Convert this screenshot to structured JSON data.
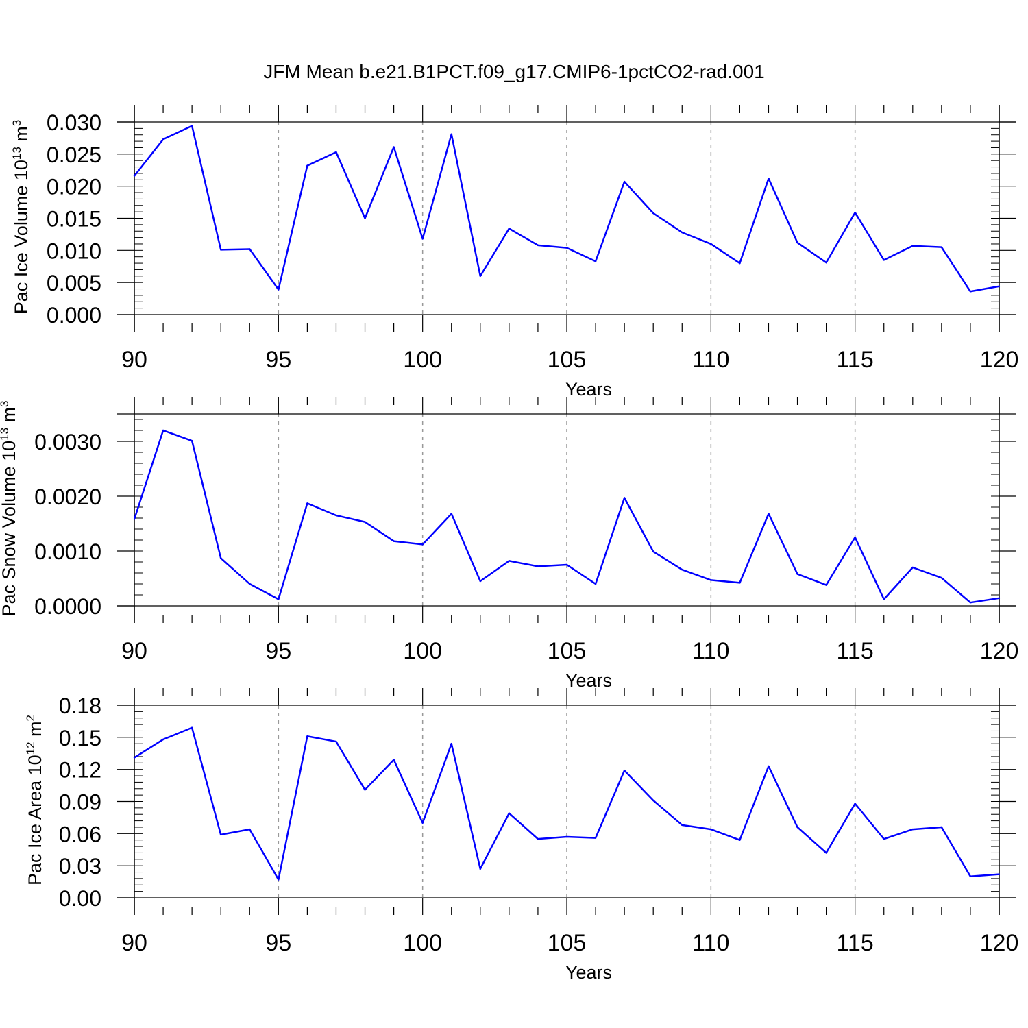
{
  "figure": {
    "title": "JFM Mean b.e21.B1PCT.f09_g17.CMIP6-1pctCO2-rad.001"
  },
  "chart_data": [
    {
      "type": "line",
      "xlabel": "Years",
      "ylabel_main": "Pac Ice Volume 10",
      "ylabel_sup": "13",
      "ylabel_unit": " m",
      "ylabel_unit_sup": "3",
      "xlim": [
        90,
        120
      ],
      "ylim": [
        0,
        0.03
      ],
      "xticks": [
        90,
        95,
        100,
        105,
        110,
        115,
        120
      ],
      "yticks": [
        0.0,
        0.005,
        0.01,
        0.015,
        0.02,
        0.025,
        0.03
      ],
      "ytick_labels": [
        "0.000",
        "0.005",
        "0.010",
        "0.015",
        "0.020",
        "0.025",
        "0.030"
      ],
      "line_color": "#0000ff",
      "grid": "dashed vertical at major x ticks",
      "x": [
        90,
        91,
        92,
        93,
        94,
        95,
        96,
        97,
        98,
        99,
        100,
        101,
        102,
        103,
        104,
        105,
        106,
        107,
        108,
        109,
        110,
        111,
        112,
        113,
        114,
        115,
        116,
        117,
        118,
        119,
        120
      ],
      "y": [
        0.0216,
        0.0273,
        0.0294,
        0.0101,
        0.0102,
        0.0039,
        0.0232,
        0.0253,
        0.015,
        0.0261,
        0.0118,
        0.0281,
        0.006,
        0.0134,
        0.0108,
        0.0104,
        0.0083,
        0.0207,
        0.0158,
        0.0128,
        0.011,
        0.008,
        0.0212,
        0.0112,
        0.0081,
        0.0159,
        0.0085,
        0.0107,
        0.0105,
        0.0036,
        0.0044
      ]
    },
    {
      "type": "line",
      "xlabel": "Years",
      "ylabel_main": "Pac Snow Volume 10",
      "ylabel_sup": "13",
      "ylabel_unit": " m",
      "ylabel_unit_sup": "3",
      "xlim": [
        90,
        120
      ],
      "ylim": [
        0,
        0.0035
      ],
      "xticks": [
        90,
        95,
        100,
        105,
        110,
        115,
        120
      ],
      "yticks": [
        0.0,
        0.001,
        0.002,
        0.003
      ],
      "ytick_labels": [
        "0.0000",
        "0.0010",
        "0.0020",
        "0.0030"
      ],
      "line_color": "#0000ff",
      "grid": "dashed vertical at major x ticks",
      "x": [
        90,
        91,
        92,
        93,
        94,
        95,
        96,
        97,
        98,
        99,
        100,
        101,
        102,
        103,
        104,
        105,
        106,
        107,
        108,
        109,
        110,
        111,
        112,
        113,
        114,
        115,
        116,
        117,
        118,
        119,
        120
      ],
      "y": [
        0.00158,
        0.0032,
        0.00301,
        0.00087,
        0.0004,
        0.00012,
        0.00187,
        0.00165,
        0.00153,
        0.00118,
        0.00112,
        0.00168,
        0.00045,
        0.00082,
        0.00072,
        0.00075,
        0.0004,
        0.00197,
        0.00099,
        0.00066,
        0.00047,
        0.00042,
        0.00168,
        0.00058,
        0.00038,
        0.00125,
        0.00012,
        0.0007,
        0.00051,
        6e-05,
        0.00014
      ]
    },
    {
      "type": "line",
      "xlabel": "Years",
      "ylabel_main": "Pac Ice Area 10",
      "ylabel_sup": "12",
      "ylabel_unit": " m",
      "ylabel_unit_sup": "2",
      "xlim": [
        90,
        120
      ],
      "ylim": [
        0,
        0.18
      ],
      "xticks": [
        90,
        95,
        100,
        105,
        110,
        115,
        120
      ],
      "yticks": [
        0.0,
        0.03,
        0.06,
        0.09,
        0.12,
        0.15,
        0.18
      ],
      "ytick_labels": [
        "0.00",
        "0.03",
        "0.06",
        "0.09",
        "0.12",
        "0.15",
        "0.18"
      ],
      "line_color": "#0000ff",
      "grid": "dashed vertical at major x ticks",
      "x": [
        90,
        91,
        92,
        93,
        94,
        95,
        96,
        97,
        98,
        99,
        100,
        101,
        102,
        103,
        104,
        105,
        106,
        107,
        108,
        109,
        110,
        111,
        112,
        113,
        114,
        115,
        116,
        117,
        118,
        119,
        120
      ],
      "y": [
        0.131,
        0.148,
        0.159,
        0.059,
        0.064,
        0.017,
        0.151,
        0.146,
        0.101,
        0.129,
        0.07,
        0.144,
        0.027,
        0.079,
        0.055,
        0.057,
        0.056,
        0.119,
        0.091,
        0.068,
        0.064,
        0.054,
        0.123,
        0.066,
        0.042,
        0.088,
        0.055,
        0.064,
        0.066,
        0.02,
        0.022
      ]
    }
  ]
}
